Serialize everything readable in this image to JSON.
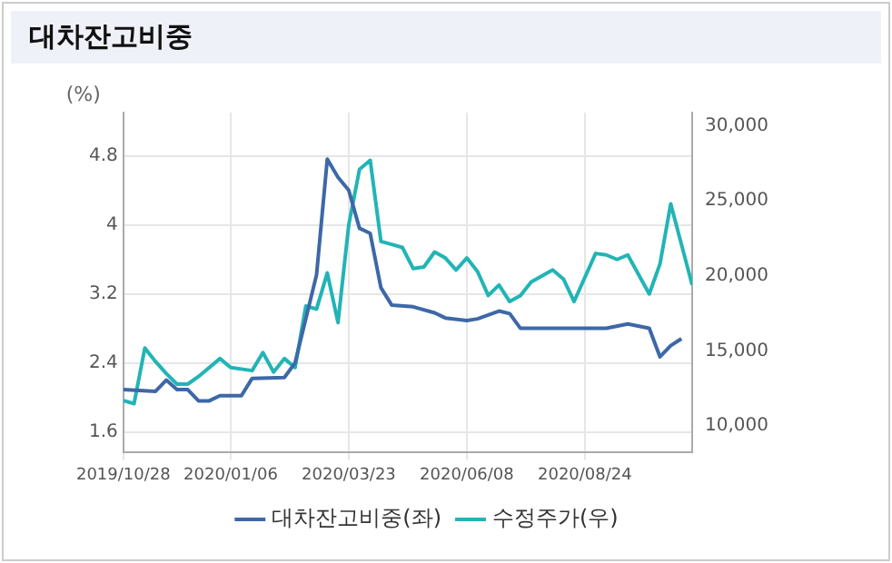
{
  "chart_data": {
    "type": "line",
    "title": "대차잔고비중",
    "ylabel": "(%)",
    "xlim": [
      "2019-10-28",
      "2020-11-02"
    ],
    "xticks": [
      {
        "value": "2019-10-28",
        "label": "2019/10/28"
      },
      {
        "value": "2020-01-06",
        "label": "2020/01/06"
      },
      {
        "value": "2020-03-23",
        "label": "2020/03/23"
      },
      {
        "value": "2020-06-08",
        "label": "2020/06/08"
      },
      {
        "value": "2020-08-24",
        "label": "2020/08/24"
      }
    ],
    "ylim": [
      1.36,
      5.3
    ],
    "yticks": [
      1.6,
      2.4,
      3.2,
      4,
      4.8
    ],
    "y2lim": [
      8240,
      30880
    ],
    "y2ticks": [
      {
        "value": 10000,
        "label": "10,000"
      },
      {
        "value": 15000,
        "label": "15,000"
      },
      {
        "value": 20000,
        "label": "20,000"
      },
      {
        "value": 25000,
        "label": "25,000"
      },
      {
        "value": 30000,
        "label": "30,000"
      }
    ],
    "grid": true,
    "legend": "bottom",
    "marker": "none",
    "line_style": "solid",
    "series": [
      {
        "name": "대차잔고비중(좌)",
        "color": "#3d68a8",
        "x": [
          "2019-10-28",
          "2019-11-18",
          "2019-11-25",
          "2019-12-02",
          "2019-12-09",
          "2019-12-16",
          "2019-12-23",
          "2019-12-30",
          "2020-01-13",
          "2020-01-20",
          "2020-02-10",
          "2020-02-17",
          "2020-03-02",
          "2020-03-09",
          "2020-03-16",
          "2020-03-23",
          "2020-03-30",
          "2020-04-06",
          "2020-04-13",
          "2020-04-20",
          "2020-05-04",
          "2020-05-18",
          "2020-05-25",
          "2020-06-08",
          "2020-06-15",
          "2020-06-29",
          "2020-07-06",
          "2020-07-13",
          "2020-09-07",
          "2020-09-21",
          "2020-10-05",
          "2020-10-12",
          "2020-10-19",
          "2020-10-26"
        ],
        "values": [
          2.09,
          2.07,
          2.2,
          2.09,
          2.09,
          1.96,
          1.96,
          2.02,
          2.02,
          2.22,
          2.23,
          2.4,
          3.42,
          4.76,
          4.55,
          4.4,
          3.96,
          3.9,
          3.27,
          3.07,
          3.05,
          2.98,
          2.92,
          2.89,
          2.91,
          3.0,
          2.97,
          2.8,
          2.8,
          2.85,
          2.8,
          2.47,
          2.6,
          2.68
        ]
      },
      {
        "name": "수정주가(우)",
        "color": "#22b4b6",
        "axis": "y2",
        "x": [
          "2019-10-28",
          "2019-11-04",
          "2019-11-11",
          "2019-11-18",
          "2019-11-25",
          "2019-12-02",
          "2019-12-09",
          "2019-12-16",
          "2019-12-30",
          "2020-01-06",
          "2020-01-20",
          "2020-01-27",
          "2020-02-03",
          "2020-02-10",
          "2020-02-17",
          "2020-02-24",
          "2020-03-02",
          "2020-03-09",
          "2020-03-16",
          "2020-03-23",
          "2020-03-30",
          "2020-04-06",
          "2020-04-13",
          "2020-04-20",
          "2020-04-27",
          "2020-05-04",
          "2020-05-11",
          "2020-05-18",
          "2020-05-25",
          "2020-06-01",
          "2020-06-08",
          "2020-06-15",
          "2020-06-22",
          "2020-06-29",
          "2020-07-06",
          "2020-07-13",
          "2020-07-20",
          "2020-08-03",
          "2020-08-10",
          "2020-08-17",
          "2020-08-31",
          "2020-09-07",
          "2020-09-14",
          "2020-09-21",
          "2020-10-05",
          "2020-10-12",
          "2020-10-19",
          "2020-11-02"
        ],
        "values": [
          11700,
          11500,
          15200,
          14300,
          13500,
          12800,
          12800,
          13300,
          14500,
          13900,
          13700,
          14900,
          13600,
          14500,
          13900,
          18000,
          17800,
          20200,
          16900,
          23400,
          27100,
          27700,
          22300,
          22100,
          21900,
          20500,
          20600,
          21600,
          21200,
          20400,
          21200,
          20300,
          18700,
          19400,
          18300,
          18700,
          19600,
          20400,
          19800,
          18300,
          21500,
          21400,
          21100,
          21400,
          18800,
          20800,
          24800,
          19400
        ]
      }
    ]
  }
}
